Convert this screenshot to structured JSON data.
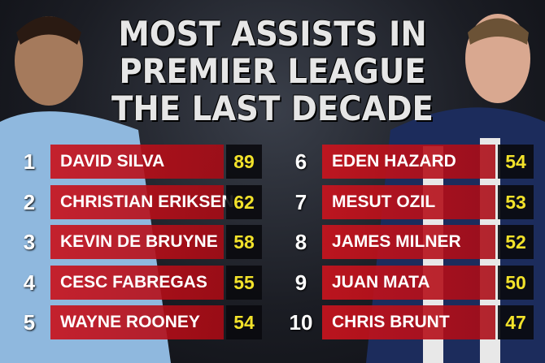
{
  "title": [
    "MOST ASSISTS IN",
    "PREMIER LEAGUE",
    "THE LAST DECADE"
  ],
  "table": {
    "rows": [
      [
        1,
        "DAVID SILVA",
        89
      ],
      [
        2,
        "CHRISTIAN ERIKSEN",
        62
      ],
      [
        3,
        "KEVIN DE BRUYNE",
        58
      ],
      [
        4,
        "CESC FABREGAS",
        55
      ],
      [
        5,
        "WAYNE ROONEY",
        54
      ],
      [
        6,
        "EDEN HAZARD",
        54
      ],
      [
        7,
        "MESUT OZIL",
        53
      ],
      [
        8,
        "JAMES MILNER",
        52
      ],
      [
        9,
        "JUAN MATA",
        50
      ],
      [
        10,
        "CHRIS BRUNT",
        47
      ]
    ]
  }
}
